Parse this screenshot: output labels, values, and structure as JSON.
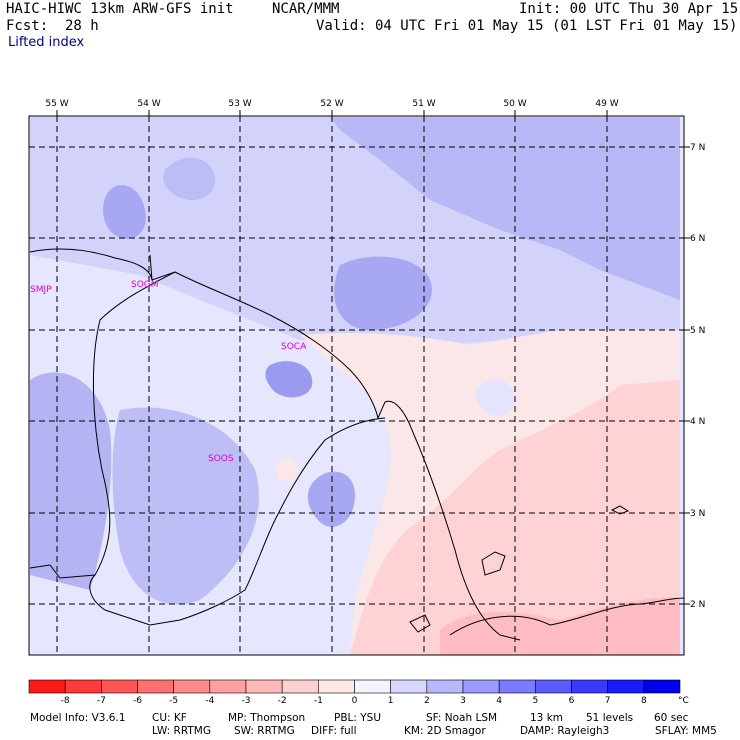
{
  "header": {
    "model": "HAIC-HIWC 13km ARW-GFS init",
    "org": "NCAR/MMM",
    "init": "Init: 00 UTC Thu 30 Apr 15",
    "fcst_label": "Fcst:",
    "fcst_value": "28 h",
    "valid": "Valid: 04 UTC Fri 01 May 15 (01 LST Fri 01 May 15)",
    "field": "Lifted index"
  },
  "map": {
    "lon_labels": [
      "55 W",
      "54 W",
      "53 W",
      "52 W",
      "51 W",
      "50 W",
      "49 W"
    ],
    "lat_labels": [
      "7 N",
      "6 N",
      "5 N",
      "4 N",
      "3 N",
      "2 N"
    ],
    "stations": [
      "SMJP",
      "SOGM",
      "SOCA",
      "SOOS"
    ],
    "station_color": "#e000e0"
  },
  "colorbar": {
    "ticks": [
      "-8",
      "-7",
      "-6",
      "-5",
      "-4",
      "-3",
      "-2",
      "-1",
      "0",
      "1",
      "2",
      "3",
      "4",
      "5",
      "6",
      "7",
      "8"
    ],
    "unit": "°C",
    "colors": [
      "#ff1a1a",
      "#ff3a3a",
      "#ff5555",
      "#ff7070",
      "#ff8a8a",
      "#ffa0a0",
      "#ffb8b8",
      "#ffd0d0",
      "#ffe8e8",
      "#f4f4ff",
      "#d6d6ff",
      "#b8b8ff",
      "#9a9aff",
      "#7a7aff",
      "#5a5aff",
      "#3a3aff",
      "#1a1aff",
      "#0000ee"
    ]
  },
  "footer": {
    "line1": [
      "Model Info: V3.6.1",
      "CU: KF",
      "MP: Thompson",
      "PBL: YSU",
      "SF: Noah LSM",
      "13 km",
      "51 levels",
      "60 sec"
    ],
    "line2": [
      "LW: RRTMG",
      "SW: RRTMG",
      "DIFF: full",
      "KM: 2D Smagor",
      "DAMP: Rayleigh3",
      "SFLAY: MM5"
    ]
  }
}
